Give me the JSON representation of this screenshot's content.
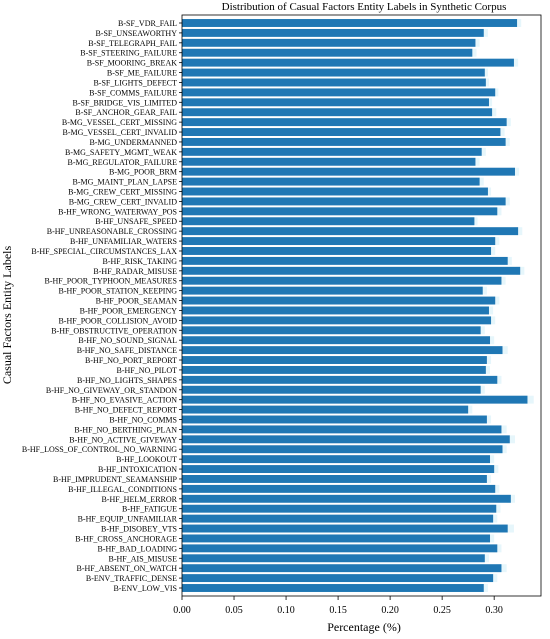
{
  "chart_data": {
    "type": "bar",
    "orientation": "horizontal",
    "title": "Distribution of Casual Factors Entity Labels in Synthetic Corpus",
    "xlabel": "Percentage (%)",
    "ylabel": "Casual Factors Entity Labels",
    "xlim": [
      0,
      0.345
    ],
    "xticks": [
      "0.00",
      "0.05",
      "0.10",
      "0.15",
      "0.20",
      "0.25",
      "0.30"
    ],
    "bar_color": "#1f77b4",
    "error_band_color": "#e6f6fb",
    "categories": [
      "B-SF_VDR_FAIL",
      "B-SF_UNSEAWORTHY",
      "B-SF_TELEGRAPH_FAIL",
      "B-SF_STEERING_FAILURE",
      "B-SF_MOORING_BREAK",
      "B-SF_ME_FAILURE",
      "B-SF_LIGHTS_DEFECT",
      "B-SF_COMMS_FAILURE",
      "B-SF_BRIDGE_VIS_LIMITED",
      "B-SF_ANCHOR_GEAR_FAIL",
      "B-MG_VESSEL_CERT_MISSING",
      "B-MG_VESSEL_CERT_INVALID",
      "B-MG_UNDERMANNED",
      "B-MG_SAFETY_MGMT_WEAK",
      "B-MG_REGULATOR_FAILURE",
      "B-MG_POOR_BRM",
      "B-MG_MAINT_PLAN_LAPSE",
      "B-MG_CREW_CERT_MISSING",
      "B-MG_CREW_CERT_INVALID",
      "B-HF_WRONG_WATERWAY_POS",
      "B-HF_UNSAFE_SPEED",
      "B-HF_UNREASONABLE_CROSSING",
      "B-HF_UNFAMILIAR_WATERS",
      "B-HF_SPECIAL_CIRCUMSTANCES_LAX",
      "B-HF_RISK_TAKING",
      "B-HF_RADAR_MISUSE",
      "B-HF_POOR_TYPHOON_MEASURES",
      "B-HF_POOR_STATION_KEEPING",
      "B-HF_POOR_SEAMAN",
      "B-HF_POOR_EMERGENCY",
      "B-HF_POOR_COLLISION_AVOID",
      "B-HF_OBSTRUCTIVE_OPERATION",
      "B-HF_NO_SOUND_SIGNAL",
      "B-HF_NO_SAFE_DISTANCE",
      "B-HF_NO_PORT_REPORT",
      "B-HF_NO_PILOT",
      "B-HF_NO_LIGHTS_SHAPES",
      "B-HF_NO_GIVEWAY_OR_STANDON",
      "B-HF_NO_EVASIVE_ACTION",
      "B-HF_NO_DEFECT_REPORT",
      "B-HF_NO_COMMS",
      "B-HF_NO_BERTHING_PLAN",
      "B-HF_NO_ACTIVE_GIVEWAY",
      "B-HF_LOSS_OF_CONTROL_NO_WARNING",
      "B-HF_LOOKOUT",
      "B-HF_INTOXICATION",
      "B-HF_IMPRUDENT_SEAMANSHIP",
      "B-HF_ILLEGAL_CONDITIONS",
      "B-HF_HELM_ERROR",
      "B-HF_FATIGUE",
      "B-HF_EQUIP_UNFAMILIAR",
      "B-HF_DISOBEY_VTS",
      "B-HF_CROSS_ANCHORAGE",
      "B-HF_BAD_LOADING",
      "B-HF_AIS_MISUSE",
      "B-HF_ABSENT_ON_WATCH",
      "B-ENV_TRAFFIC_DENSE",
      "B-ENV_LOW_VIS"
    ],
    "values": [
      0.322,
      0.29,
      0.282,
      0.279,
      0.319,
      0.291,
      0.292,
      0.301,
      0.295,
      0.298,
      0.312,
      0.306,
      0.311,
      0.288,
      0.282,
      0.32,
      0.286,
      0.294,
      0.311,
      0.303,
      0.281,
      0.323,
      0.301,
      0.297,
      0.313,
      0.325,
      0.307,
      0.289,
      0.301,
      0.295,
      0.297,
      0.287,
      0.296,
      0.308,
      0.293,
      0.292,
      0.303,
      0.287,
      0.332,
      0.275,
      0.293,
      0.307,
      0.315,
      0.308,
      0.296,
      0.3,
      0.293,
      0.301,
      0.316,
      0.302,
      0.299,
      0.313,
      0.296,
      0.303,
      0.291,
      0.307,
      0.299,
      0.29
    ],
    "errors": [
      0.004,
      0.004,
      0.004,
      0.004,
      0.004,
      0.003,
      0.003,
      0.003,
      0.003,
      0.004,
      0.004,
      0.004,
      0.004,
      0.004,
      0.004,
      0.004,
      0.004,
      0.003,
      0.004,
      0.004,
      0.003,
      0.004,
      0.004,
      0.004,
      0.004,
      0.004,
      0.004,
      0.004,
      0.004,
      0.004,
      0.004,
      0.004,
      0.004,
      0.005,
      0.004,
      0.004,
      0.004,
      0.004,
      0.006,
      0.004,
      0.004,
      0.005,
      0.005,
      0.004,
      0.004,
      0.004,
      0.004,
      0.004,
      0.004,
      0.004,
      0.004,
      0.006,
      0.004,
      0.004,
      0.004,
      0.005,
      0.004,
      0.004
    ]
  }
}
